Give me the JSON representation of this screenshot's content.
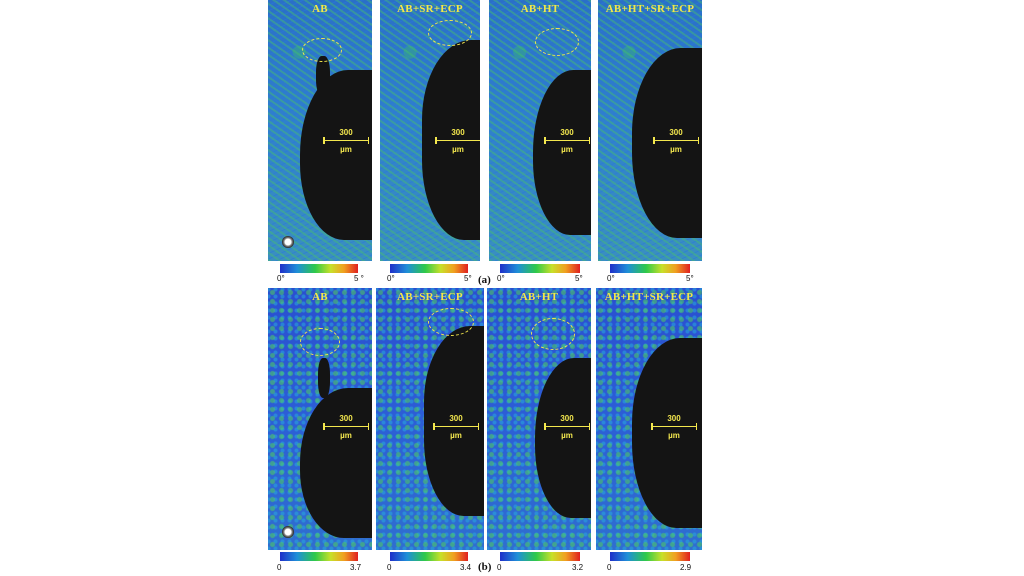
{
  "figure": {
    "row_a": {
      "label": "(a)",
      "panels": [
        {
          "title": "AB",
          "scale_value": "300",
          "scale_unit": "µm",
          "cbar_min": "0°",
          "cbar_max": "5 °"
        },
        {
          "title": "AB+SR+ECP",
          "scale_value": "300",
          "scale_unit": "µm",
          "cbar_min": "0°",
          "cbar_max": "5°"
        },
        {
          "title": "AB+HT",
          "scale_value": "300",
          "scale_unit": "µm",
          "cbar_min": "0°",
          "cbar_max": "5°"
        },
        {
          "title": "AB+HT+SR+ECP",
          "scale_value": "300",
          "scale_unit": "µm",
          "cbar_min": "0°",
          "cbar_max": "5°"
        }
      ]
    },
    "row_b": {
      "label": "(b)",
      "panels": [
        {
          "title": "AB",
          "scale_value": "300",
          "scale_unit": "µm",
          "cbar_min": "0",
          "cbar_max": "3.7"
        },
        {
          "title": "AB+SR+ECP",
          "scale_value": "300",
          "scale_unit": "µm",
          "cbar_min": "0",
          "cbar_max": "3.4"
        },
        {
          "title": "AB+HT",
          "scale_value": "300",
          "scale_unit": "µm",
          "cbar_min": "0",
          "cbar_max": "3.2"
        },
        {
          "title": "AB+HT+SR+ECP",
          "scale_value": "300",
          "scale_unit": "µm",
          "cbar_min": "0",
          "cbar_max": "2.9"
        }
      ]
    },
    "colors": {
      "annotation": "#f4e84e",
      "void": "#141414",
      "colormap": [
        "#1f2fc9",
        "#2ec94a",
        "#e02020"
      ]
    }
  }
}
